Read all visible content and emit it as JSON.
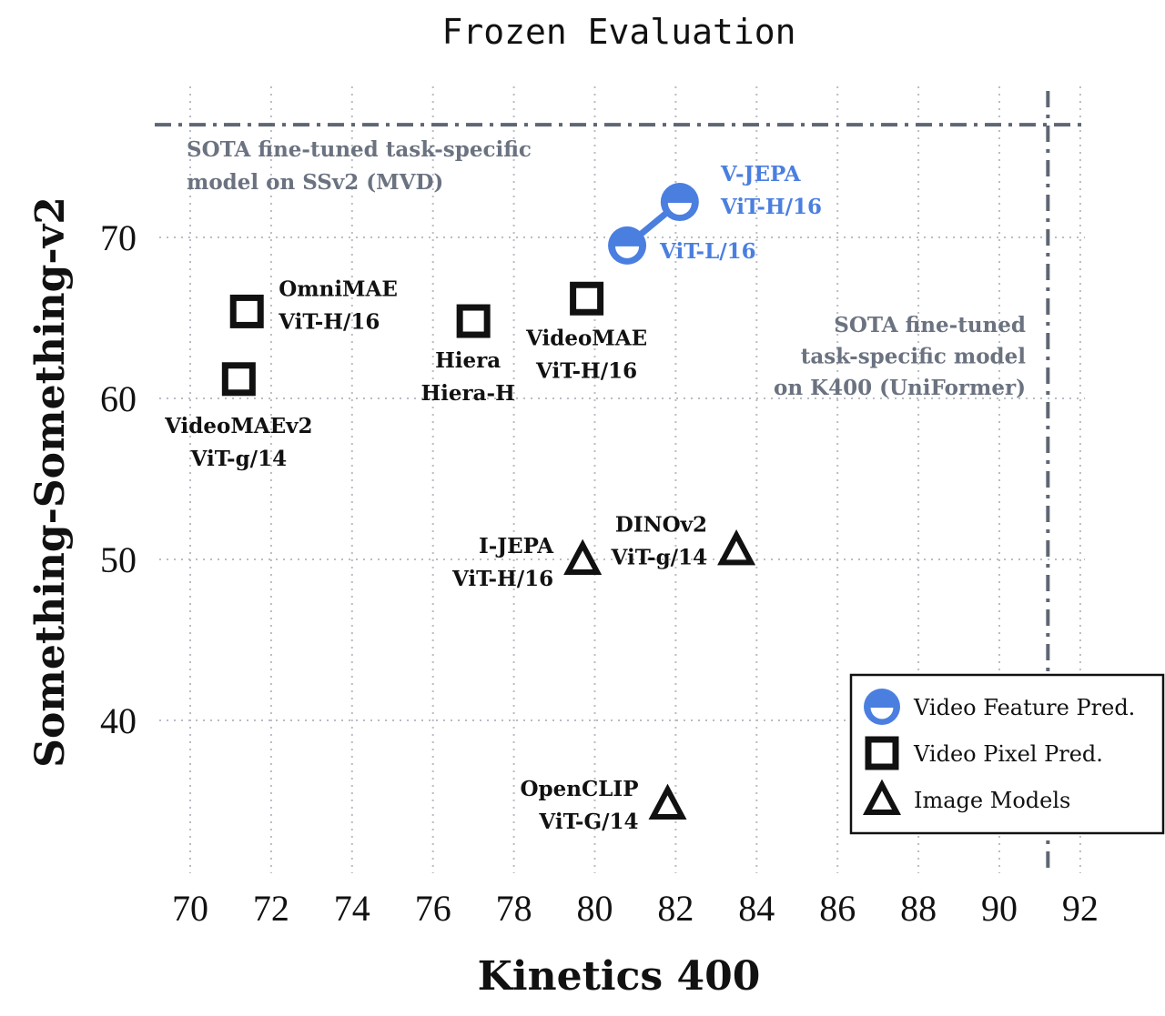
{
  "chart_data": {
    "type": "scatter",
    "title": "Frozen Evaluation",
    "xlabel": "Kinetics 400",
    "ylabel": "Something-Something-v2",
    "xlim": [
      68,
      93
    ],
    "ylim": [
      31,
      78
    ],
    "xticks": [
      "70",
      "72",
      "74",
      "76",
      "78",
      "80",
      "82",
      "84",
      "86",
      "88",
      "90",
      "92"
    ],
    "yticks": [
      "40",
      "50",
      "60",
      "70"
    ],
    "grid": true,
    "legend_position": "bottom-right",
    "colors": {
      "video_feature": "#4a7fe0",
      "pixel": "#111111",
      "sota": "#5f6673"
    },
    "series": [
      {
        "name": "Video Feature Pred.",
        "marker": "half-filled-circle",
        "connected": true,
        "points": [
          {
            "x": 80.8,
            "y": 69.5,
            "label": [
              "ViT-L/16"
            ]
          },
          {
            "x": 82.1,
            "y": 72.2,
            "label": [
              "V-JEPA",
              "ViT-H/16"
            ]
          }
        ]
      },
      {
        "name": "Video Pixel Pred.",
        "marker": "square",
        "points": [
          {
            "x": 71.4,
            "y": 65.4,
            "label": [
              "OmniMAE",
              "ViT-H/16"
            ]
          },
          {
            "x": 71.2,
            "y": 61.2,
            "label": [
              "VideoMAEv2",
              "ViT-g/14"
            ]
          },
          {
            "x": 77.0,
            "y": 64.8,
            "label": [
              "Hiera",
              "Hiera-H"
            ]
          },
          {
            "x": 79.8,
            "y": 66.2,
            "label": [
              "VideoMAE",
              "ViT-H/16"
            ]
          }
        ]
      },
      {
        "name": "Image Models",
        "marker": "triangle",
        "points": [
          {
            "x": 79.7,
            "y": 50.0,
            "label": [
              "I-JEPA",
              "ViT-H/16"
            ]
          },
          {
            "x": 83.5,
            "y": 50.6,
            "label": [
              "DINOv2",
              "ViT-g/14"
            ]
          },
          {
            "x": 81.8,
            "y": 34.8,
            "label": [
              "OpenCLIP",
              "ViT-G/14"
            ]
          }
        ]
      }
    ],
    "reference_lines": [
      {
        "axis": "y",
        "value": 77.0,
        "label": [
          "SOTA  fine-tuned  task-specific",
          "model  on  SSv2  (MVD)"
        ]
      },
      {
        "axis": "x",
        "value": 91.2,
        "label": [
          "SOTA  fine-tuned",
          "task-specific  model",
          "on  K400  (UniFormer)"
        ]
      }
    ]
  }
}
